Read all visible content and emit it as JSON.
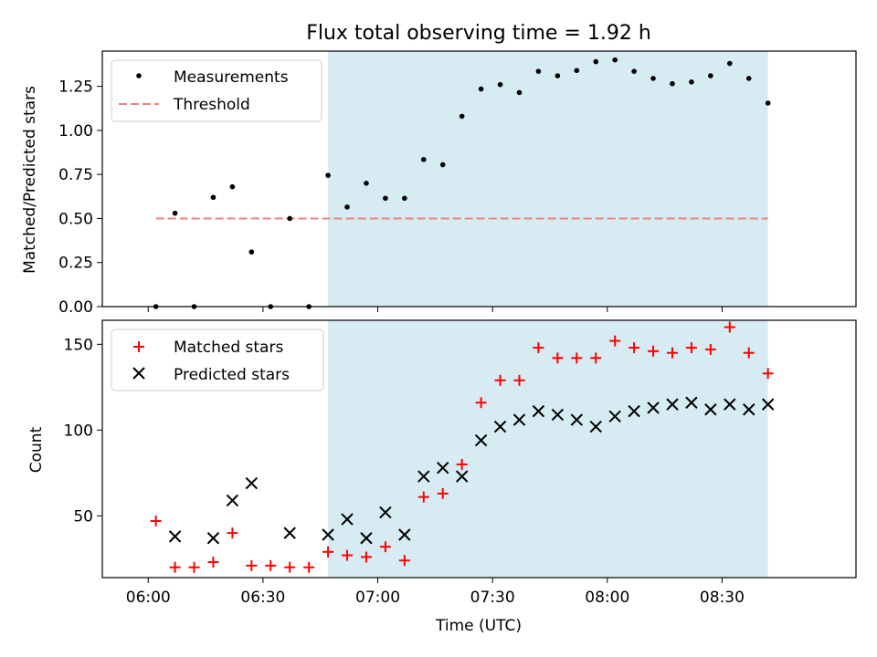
{
  "title": "Flux total observing time = 1.92 h",
  "colors": {
    "shade": "#add8e6",
    "threshold": "#f08080",
    "measurement": "#000000",
    "matched": "#ff0000",
    "predicted": "#000000"
  },
  "chart_data": [
    {
      "type": "scatter",
      "panel": "top",
      "ylabel": "Matched/Predicted stars",
      "xlabel": "",
      "ylim": [
        0,
        1.45
      ],
      "yticks": [
        0,
        0.25,
        0.5,
        0.75,
        1.0,
        1.25
      ],
      "ytick_labels": [
        "0.00",
        "0.25",
        "0.50",
        "0.75",
        "1.00",
        "1.25"
      ],
      "xlim": [
        "05:48",
        "09:05"
      ],
      "xticks": [
        "06:00",
        "06:30",
        "07:00",
        "07:30",
        "08:00",
        "08:30"
      ],
      "xtick_labels_visible": false,
      "legend_position": "top-left",
      "shaded_span": {
        "x_start": "06:47",
        "x_end": "08:42"
      },
      "threshold": {
        "name": "Threshold",
        "value": 0.5,
        "x_start": "06:02",
        "x_end": "08:42",
        "style": "dashed"
      },
      "series": [
        {
          "name": "Measurements",
          "marker": "dot",
          "x": [
            "06:02",
            "06:07",
            "06:12",
            "06:17",
            "06:22",
            "06:27",
            "06:32",
            "06:37",
            "06:42",
            "06:47",
            "06:52",
            "06:57",
            "07:02",
            "07:07",
            "07:12",
            "07:17",
            "07:22",
            "07:27",
            "07:32",
            "07:37",
            "07:42",
            "07:47",
            "07:52",
            "07:57",
            "08:02",
            "08:07",
            "08:12",
            "08:17",
            "08:22",
            "08:27",
            "08:32",
            "08:37",
            "08:42"
          ],
          "y": [
            0.0,
            0.53,
            0.0,
            0.62,
            0.68,
            0.31,
            0.0,
            0.5,
            0.0,
            0.745,
            0.565,
            0.7,
            0.615,
            0.615,
            0.835,
            0.805,
            1.08,
            1.235,
            1.26,
            1.215,
            1.335,
            1.31,
            1.34,
            1.39,
            1.4,
            1.335,
            1.295,
            1.265,
            1.275,
            1.31,
            1.38,
            1.295,
            1.155
          ]
        }
      ]
    },
    {
      "type": "scatter",
      "panel": "bottom",
      "ylabel": "Count",
      "xlabel": "Time (UTC)",
      "ylim": [
        14,
        164
      ],
      "yticks": [
        50,
        100,
        150
      ],
      "ytick_labels": [
        "50",
        "100",
        "150"
      ],
      "xlim": [
        "05:48",
        "09:05"
      ],
      "xticks": [
        "06:00",
        "06:30",
        "07:00",
        "07:30",
        "08:00",
        "08:30"
      ],
      "xtick_labels": [
        "06:00",
        "06:30",
        "07:00",
        "07:30",
        "08:00",
        "08:30"
      ],
      "legend_position": "top-left",
      "shaded_span": {
        "x_start": "06:47",
        "x_end": "08:42"
      },
      "series": [
        {
          "name": "Matched stars",
          "marker": "plus",
          "x": [
            "06:02",
            "06:07",
            "06:12",
            "06:17",
            "06:22",
            "06:27",
            "06:32",
            "06:37",
            "06:42",
            "06:47",
            "06:52",
            "06:57",
            "07:02",
            "07:07",
            "07:12",
            "07:17",
            "07:22",
            "07:27",
            "07:32",
            "07:37",
            "07:42",
            "07:47",
            "07:52",
            "07:57",
            "08:02",
            "08:07",
            "08:12",
            "08:17",
            "08:22",
            "08:27",
            "08:32",
            "08:37",
            "08:42"
          ],
          "y": [
            47,
            20,
            20,
            23,
            40,
            21,
            21,
            20,
            20,
            29,
            27,
            26,
            32,
            24,
            61,
            63,
            80,
            116,
            129,
            129,
            148,
            142,
            142,
            142,
            152,
            148,
            146,
            145,
            148,
            147,
            160,
            145,
            133
          ]
        },
        {
          "name": "Predicted stars",
          "marker": "x",
          "x": [
            "06:07",
            "06:17",
            "06:22",
            "06:27",
            "06:37",
            "06:47",
            "06:52",
            "06:57",
            "07:02",
            "07:07",
            "07:12",
            "07:17",
            "07:22",
            "07:27",
            "07:32",
            "07:37",
            "07:42",
            "07:47",
            "07:52",
            "07:57",
            "08:02",
            "08:07",
            "08:12",
            "08:17",
            "08:22",
            "08:27",
            "08:32",
            "08:37",
            "08:42"
          ],
          "y": [
            38,
            37,
            59,
            69,
            40,
            39,
            48,
            37,
            52,
            39,
            73,
            78,
            73,
            94,
            102,
            106,
            111,
            109,
            106,
            102,
            108,
            111,
            113,
            115,
            116,
            112,
            115,
            112,
            115
          ]
        }
      ]
    }
  ]
}
